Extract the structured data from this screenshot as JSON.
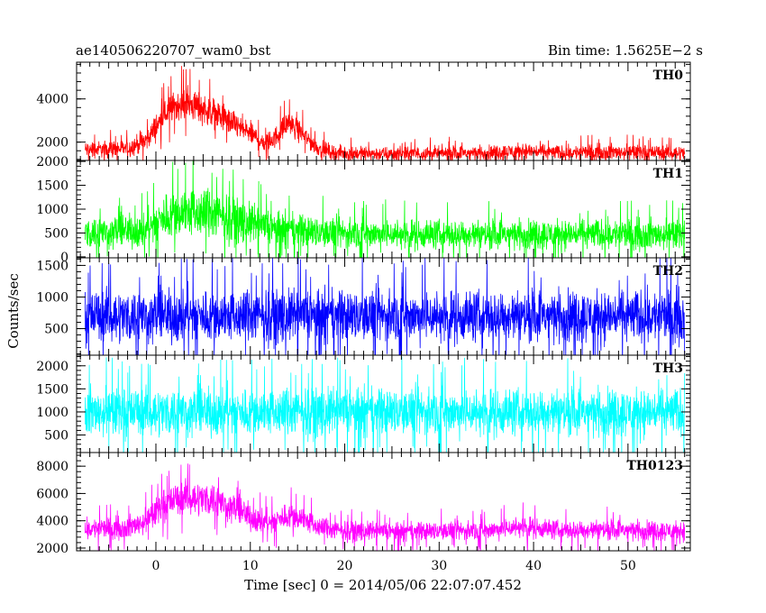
{
  "chart_data": {
    "type": "line",
    "title_left": "ae140506220707_wam0_bst",
    "title_right": "Bin time: 1.5625E−2 s",
    "xlabel": "Time [sec] 0 = 2014/05/06 22:07:07.452",
    "ylabel": "Counts/sec",
    "xlim": [
      -8.4,
      56.6
    ],
    "x_ticks": [
      0,
      10,
      20,
      30,
      40,
      50
    ],
    "bin_time": 0.015625,
    "grid": false,
    "panels": [
      {
        "name": "TH0",
        "color": "#ff0000",
        "ylim": [
          1150,
          5700
        ],
        "y_ticks": [
          2000,
          4000
        ],
        "envelope": {
          "t": [
            -7.5,
            -3,
            -1,
            1,
            2.5,
            4,
            6,
            8,
            10,
            11.5,
            12.5,
            14,
            15.5,
            17,
            19,
            25,
            35,
            39,
            43,
            47,
            56
          ],
          "mean": [
            1650,
            1700,
            2100,
            3300,
            3800,
            3700,
            3400,
            2900,
            2400,
            1950,
            2150,
            2900,
            2400,
            1750,
            1500,
            1450,
            1500,
            1600,
            1500,
            1550,
            1500
          ],
          "amp": [
            550,
            600,
            750,
            1000,
            1100,
            1050,
            1000,
            900,
            800,
            650,
            700,
            800,
            700,
            550,
            500,
            480,
            500,
            550,
            500,
            520,
            500
          ]
        }
      },
      {
        "name": "TH1",
        "color": "#00ff00",
        "ylim": [
          -20,
          2020
        ],
        "y_ticks": [
          0,
          500,
          1000,
          1500,
          2000
        ],
        "envelope": {
          "t": [
            -7.5,
            -1,
            1,
            3,
            6,
            9,
            12,
            15,
            18,
            25,
            35,
            45,
            56
          ],
          "mean": [
            500,
            560,
            850,
            950,
            900,
            750,
            600,
            550,
            500,
            480,
            470,
            480,
            470
          ],
          "amp": [
            480,
            520,
            700,
            780,
            760,
            650,
            560,
            520,
            480,
            460,
            450,
            460,
            450
          ]
        }
      },
      {
        "name": "TH2",
        "color": "#0000ff",
        "ylim": [
          80,
          1620
        ],
        "y_ticks": [
          500,
          1000,
          1500
        ],
        "envelope": {
          "t": [
            -7.5,
            56
          ],
          "mean": [
            700,
            700
          ],
          "amp": [
            600,
            600
          ]
        }
      },
      {
        "name": "TH3",
        "color": "#00ffff",
        "ylim": [
          120,
          2230
        ],
        "y_ticks": [
          500,
          1000,
          1500,
          2000
        ],
        "envelope": {
          "t": [
            -7.5,
            56
          ],
          "mean": [
            1000,
            1000
          ],
          "amp": [
            750,
            750
          ]
        }
      },
      {
        "name": "TH0123",
        "color": "#ff00ff",
        "ylim": [
          1800,
          9000
        ],
        "y_ticks": [
          2000,
          4000,
          6000,
          8000
        ],
        "envelope": {
          "t": [
            -7.5,
            -3,
            -1,
            1,
            3,
            6,
            8,
            10,
            12,
            14,
            15.5,
            17,
            19,
            25,
            35,
            39,
            43,
            47,
            56
          ],
          "mean": [
            3400,
            3500,
            4000,
            5300,
            5700,
            5600,
            5000,
            4300,
            3800,
            4400,
            4200,
            3600,
            3300,
            3200,
            3300,
            3600,
            3300,
            3350,
            3250
          ],
          "amp": [
            1100,
            1150,
            1350,
            1700,
            1800,
            1800,
            1600,
            1450,
            1250,
            1400,
            1350,
            1150,
            1050,
            1000,
            1050,
            1150,
            1050,
            1100,
            1050
          ]
        }
      }
    ]
  }
}
